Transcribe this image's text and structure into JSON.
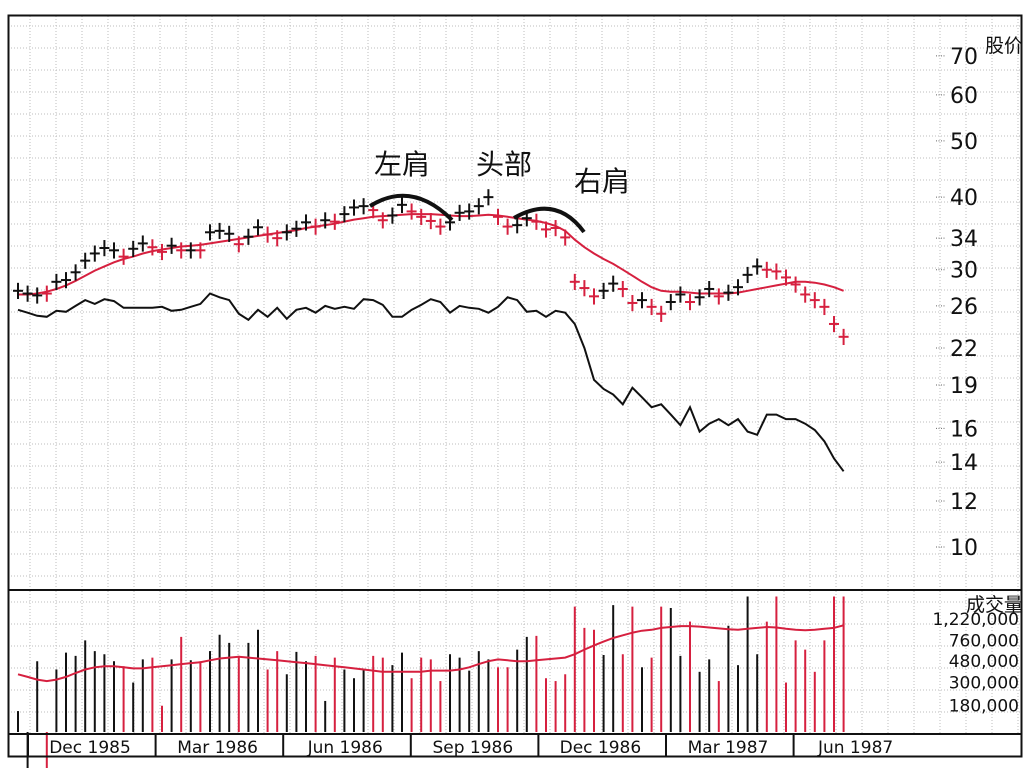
{
  "chart_data": [
    {
      "type": "ohlc",
      "title": "",
      "xlabel": "",
      "ylabel": "股价",
      "scale": "log",
      "ylim": [
        8.5,
        82
      ],
      "y_ticks": [
        "70",
        "60",
        "50",
        "40",
        "34",
        "30",
        "26",
        "22",
        "19",
        "16",
        "14",
        "12",
        "10"
      ],
      "x_tick_labels": [
        "Dec 1985",
        "Mar 1986",
        "Jun 1986",
        "Sep 1986",
        "Dec 1986",
        "Mar 1987",
        "Jun 1987"
      ],
      "grid": true,
      "annotations": [
        {
          "text": "左肩",
          "x_week": 18
        },
        {
          "text": "头部",
          "x_week": 28
        },
        {
          "text": "右肩",
          "x_week": 35
        }
      ],
      "series": [
        {
          "name": "",
          "kind": "weekly-bars",
          "close": [
            27.6,
            27.3,
            27.1,
            27.3,
            28.6,
            28.8,
            29.7,
            31.1,
            32.0,
            32.7,
            32.4,
            31.6,
            32.6,
            33.3,
            32.8,
            32.2,
            33.0,
            32.4,
            32.4,
            32.4,
            34.8,
            35.0,
            34.6,
            33.2,
            34.2,
            35.5,
            34.5,
            34.0,
            34.8,
            35.3,
            36.2,
            35.6,
            36.5,
            36.3,
            37.4,
            38.4,
            38.6,
            38.0,
            36.5,
            37.2,
            38.8,
            37.8,
            37.0,
            36.4,
            35.6,
            36.2,
            37.6,
            37.8,
            38.6,
            40.0,
            37.0,
            35.6,
            35.8,
            36.8,
            36.3,
            35.2,
            35.4,
            34.1,
            28.6,
            27.9,
            27.0,
            27.6,
            28.4,
            27.8,
            26.3,
            26.6,
            25.9,
            25.2,
            26.4,
            27.2,
            26.4,
            26.9,
            27.8,
            27.0,
            27.4,
            28.0,
            29.4,
            30.4,
            30.0,
            29.8,
            29.1,
            28.3,
            27.2,
            26.6,
            25.9,
            24.2,
            23.0
          ],
          "up": [
            true,
            true,
            true,
            false,
            true,
            true,
            true,
            true,
            true,
            true,
            true,
            false,
            true,
            true,
            false,
            false,
            true,
            false,
            true,
            false,
            true,
            true,
            true,
            false,
            true,
            true,
            false,
            false,
            true,
            true,
            true,
            false,
            true,
            false,
            true,
            true,
            true,
            false,
            false,
            true,
            true,
            false,
            false,
            false,
            false,
            true,
            true,
            true,
            true,
            true,
            false,
            false,
            true,
            true,
            false,
            false,
            false,
            false,
            false,
            false,
            false,
            true,
            true,
            false,
            false,
            true,
            false,
            false,
            true,
            true,
            false,
            true,
            true,
            false,
            true,
            true,
            true,
            true,
            false,
            false,
            false,
            false,
            false,
            false,
            false,
            false,
            false
          ]
        },
        {
          "name": "",
          "kind": "moving-average-price",
          "color": "#d6203f",
          "values": [
            27.2,
            27.2,
            27.3,
            27.5,
            27.8,
            28.2,
            28.7,
            29.3,
            29.9,
            30.4,
            30.9,
            31.3,
            31.6,
            32.0,
            32.3,
            32.5,
            32.7,
            32.9,
            33.0,
            33.1,
            33.3,
            33.5,
            33.7,
            33.9,
            34.1,
            34.3,
            34.5,
            34.7,
            34.9,
            35.1,
            35.4,
            35.6,
            35.8,
            36.0,
            36.3,
            36.6,
            36.8,
            37.0,
            37.1,
            37.2,
            37.3,
            37.4,
            37.4,
            37.4,
            37.3,
            37.2,
            37.1,
            37.1,
            37.2,
            37.3,
            37.2,
            37.0,
            36.8,
            36.6,
            36.4,
            36.1,
            35.7,
            35.0,
            33.8,
            32.8,
            32.0,
            31.3,
            30.7,
            30.0,
            29.3,
            28.6,
            28.0,
            27.6,
            27.5,
            27.5,
            27.4,
            27.3,
            27.3,
            27.3,
            27.3,
            27.4,
            27.6,
            27.8,
            28.0,
            28.2,
            28.4,
            28.6,
            28.6,
            28.5,
            28.3,
            28.0,
            27.6
          ]
        },
        {
          "name": "",
          "kind": "relative-strength-line",
          "color": "#111111",
          "values": [
            25.6,
            25.3,
            25.0,
            24.9,
            25.5,
            25.4,
            26.0,
            26.6,
            26.2,
            26.7,
            26.5,
            25.8,
            25.8,
            25.8,
            25.8,
            25.9,
            25.5,
            25.6,
            25.9,
            26.2,
            27.3,
            26.9,
            26.6,
            25.2,
            24.6,
            25.6,
            24.9,
            25.8,
            24.7,
            25.6,
            25.8,
            25.3,
            26.0,
            25.7,
            25.9,
            25.7,
            26.7,
            26.6,
            26.1,
            24.9,
            24.9,
            25.6,
            26.1,
            26.7,
            26.4,
            25.3,
            26.0,
            25.8,
            25.7,
            25.3,
            25.9,
            26.9,
            26.6,
            25.4,
            25.5,
            24.9,
            25.5,
            25.3,
            24.2,
            22.0,
            19.4,
            18.7,
            18.3,
            17.6,
            18.8,
            18.1,
            17.4,
            17.6,
            16.9,
            16.2,
            17.4,
            15.8,
            16.3,
            16.6,
            16.2,
            16.6,
            15.8,
            15.6,
            16.9,
            16.9,
            16.6,
            16.6,
            16.3,
            15.9,
            15.2,
            14.2,
            13.5
          ]
        }
      ]
    },
    {
      "type": "bar",
      "title": "",
      "ylabel": "成交量",
      "y_ticks": [
        "1,220,000",
        "760,000",
        "480,000",
        "300,000",
        "180,000"
      ],
      "series": [
        {
          "name": "",
          "kind": "weekly-volume",
          "values": [
            160000,
            30000,
            480000,
            30000,
            400000,
            580000,
            540000,
            760000,
            600000,
            560000,
            480000,
            430000,
            300000,
            500000,
            520000,
            180000,
            500000,
            820000,
            490000,
            480000,
            600000,
            860000,
            720000,
            540000,
            720000,
            960000,
            400000,
            600000,
            360000,
            590000,
            480000,
            540000,
            200000,
            520000,
            400000,
            330000,
            400000,
            540000,
            520000,
            440000,
            580000,
            330000,
            520000,
            500000,
            310000,
            560000,
            520000,
            390000,
            600000,
            500000,
            420000,
            420000,
            620000,
            820000,
            840000,
            330000,
            310000,
            360000,
            1600000,
            1000000,
            960000,
            550000,
            1650000,
            560000,
            1600000,
            420000,
            520000,
            1600000,
            1550000,
            540000,
            1150000,
            380000,
            500000,
            310000,
            1050000,
            440000,
            2000000,
            560000,
            1150000,
            2000000,
            300000,
            760000,
            620000,
            380000,
            760000,
            2000000,
            2000000
          ],
          "up": [
            true,
            true,
            true,
            false,
            true,
            true,
            true,
            true,
            true,
            true,
            true,
            false,
            true,
            true,
            false,
            false,
            true,
            false,
            true,
            false,
            true,
            true,
            true,
            false,
            true,
            true,
            false,
            false,
            true,
            true,
            true,
            false,
            true,
            false,
            true,
            true,
            true,
            false,
            false,
            true,
            true,
            false,
            false,
            false,
            false,
            true,
            true,
            true,
            true,
            true,
            false,
            false,
            true,
            true,
            false,
            false,
            false,
            false,
            false,
            false,
            false,
            true,
            true,
            false,
            false,
            true,
            false,
            false,
            true,
            true,
            false,
            true,
            true,
            false,
            true,
            true,
            true,
            true,
            false,
            false,
            false,
            false,
            false,
            false,
            false,
            false,
            false
          ]
        },
        {
          "name": "",
          "kind": "moving-average-volume",
          "color": "#d6203f",
          "values": [
            360000,
            340000,
            320000,
            310000,
            320000,
            340000,
            370000,
            400000,
            420000,
            430000,
            430000,
            420000,
            410000,
            410000,
            420000,
            430000,
            440000,
            450000,
            460000,
            470000,
            490000,
            510000,
            520000,
            530000,
            520000,
            510000,
            500000,
            490000,
            480000,
            470000,
            460000,
            450000,
            440000,
            430000,
            420000,
            410000,
            400000,
            390000,
            380000,
            380000,
            380000,
            380000,
            380000,
            390000,
            390000,
            390000,
            400000,
            420000,
            450000,
            480000,
            500000,
            490000,
            480000,
            480000,
            490000,
            500000,
            510000,
            520000,
            560000,
            620000,
            680000,
            740000,
            800000,
            850000,
            900000,
            940000,
            960000,
            1000000,
            1020000,
            1040000,
            1040000,
            1030000,
            1010000,
            990000,
            970000,
            960000,
            980000,
            1000000,
            1020000,
            1010000,
            980000,
            960000,
            950000,
            960000,
            980000,
            1000000,
            1060000
          ]
        }
      ]
    }
  ]
}
